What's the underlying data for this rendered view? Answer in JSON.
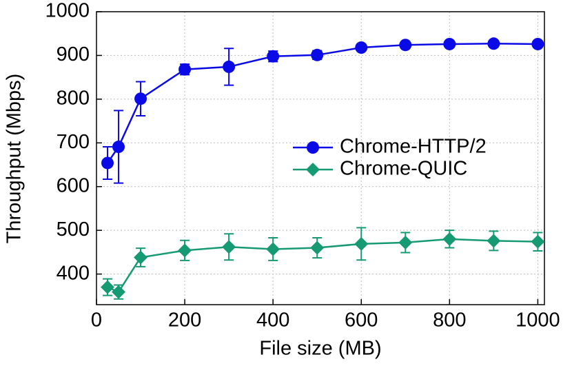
{
  "chart_data": {
    "type": "line",
    "xlabel": "File size (MB)",
    "ylabel": "Throughput (Mbps)",
    "x": [
      25,
      50,
      100,
      200,
      300,
      400,
      500,
      600,
      700,
      800,
      900,
      1000
    ],
    "series": [
      {
        "name": "Chrome-HTTP/2",
        "color": "#0a0ae6",
        "marker": "circle",
        "values": [
          654,
          691,
          801,
          868,
          874,
          898,
          901,
          918,
          924,
          926,
          927,
          926
        ],
        "errors": [
          37,
          83,
          39,
          12,
          42,
          12,
          10,
          4,
          3,
          3,
          3,
          3
        ]
      },
      {
        "name": "Chrome-QUIC",
        "color": "#169a73",
        "marker": "diamond",
        "values": [
          370,
          359,
          438,
          454,
          462,
          457,
          460,
          469,
          472,
          480,
          476,
          474
        ],
        "errors": [
          19,
          16,
          21,
          23,
          30,
          26,
          23,
          37,
          23,
          20,
          22,
          21
        ]
      }
    ],
    "xlim": [
      0,
      1015
    ],
    "ylim": [
      330,
      1000
    ],
    "xticks": [
      0,
      200,
      400,
      600,
      800,
      1000
    ],
    "yticks": [
      400,
      500,
      600,
      700,
      800,
      900,
      1000
    ],
    "grid": true,
    "legend": "center-right"
  }
}
